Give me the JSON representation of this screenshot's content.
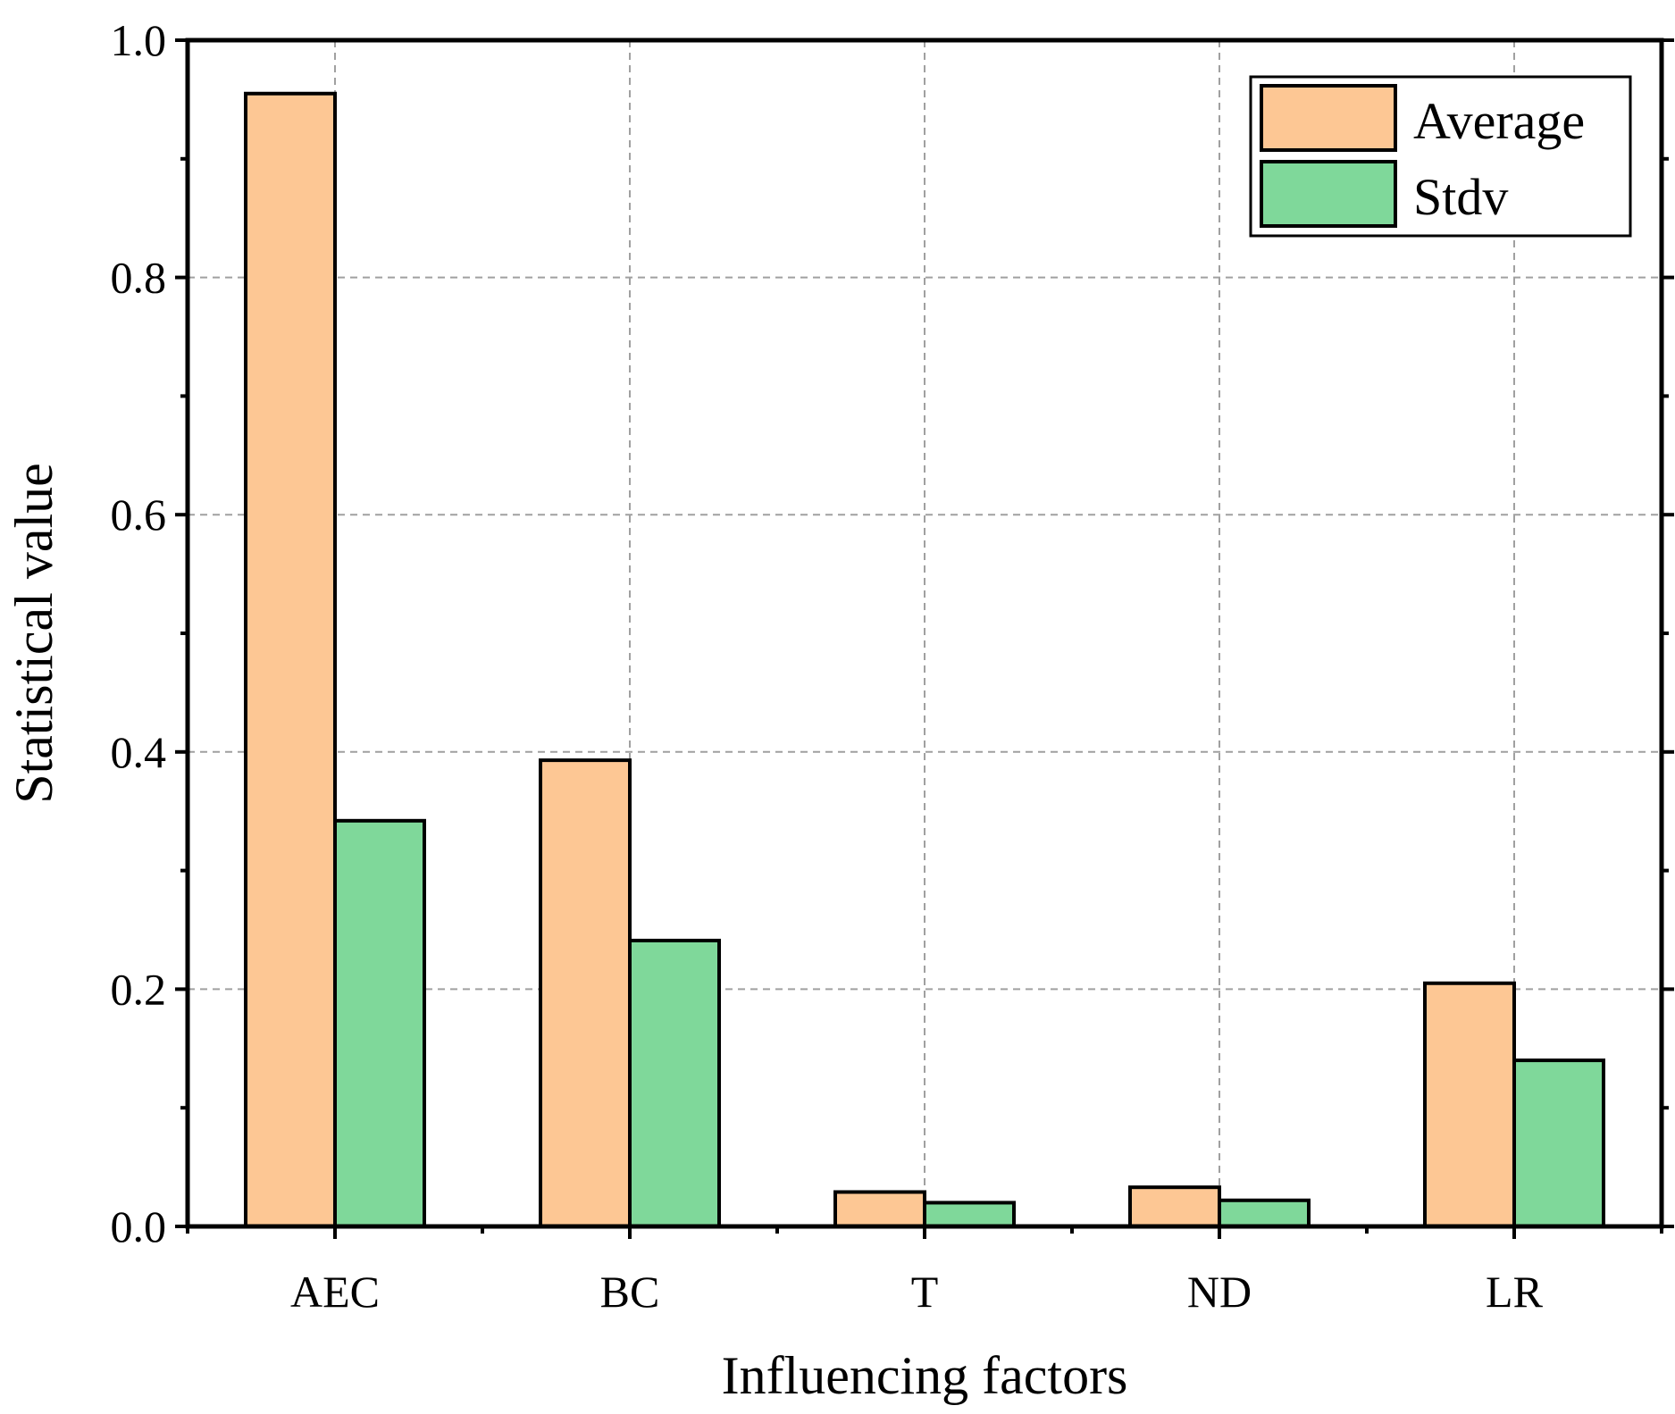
{
  "chart_data": {
    "type": "bar",
    "title": "",
    "xlabel": "Influencing factors",
    "ylabel": "Statistical value",
    "categories": [
      "AEC",
      "BC",
      "T",
      "ND",
      "LR"
    ],
    "series": [
      {
        "name": "Average",
        "color": "#FDC794",
        "values": [
          0.955,
          0.393,
          0.029,
          0.033,
          0.205
        ]
      },
      {
        "name": "Stdv",
        "color": "#7FD89A",
        "values": [
          0.342,
          0.241,
          0.02,
          0.022,
          0.14
        ]
      }
    ],
    "ylim": [
      0,
      1.0
    ],
    "yticks": [
      "0.0",
      "0.2",
      "0.4",
      "0.6",
      "0.8",
      "1.0"
    ],
    "grid": true,
    "legend_position": "top-right"
  }
}
